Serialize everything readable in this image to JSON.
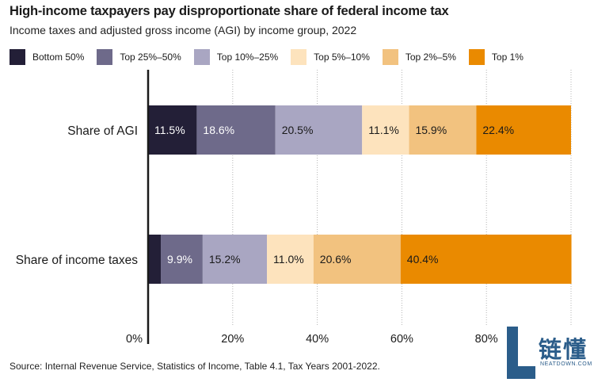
{
  "title": "High-income taxpayers pay disproportionate share of federal income tax",
  "subtitle": "Income taxes and adjusted gross income (AGI) by income group, 2022",
  "source": "Source: Internal Revenue Service, Statistics of Income, Table 4.1, Tax Years 2001-2022.",
  "watermark": {
    "chinese": "链懂",
    "latin": "NEATDOWN.COM"
  },
  "chart_data": {
    "type": "bar",
    "orientation": "horizontal",
    "stacked": true,
    "categories": [
      "Share of AGI",
      "Share of income taxes"
    ],
    "series": [
      {
        "name": "Bottom 50%",
        "color": "#231f37",
        "values": [
          11.5,
          3.0
        ],
        "labels": [
          "11.5%",
          ""
        ]
      },
      {
        "name": "Top 25%–50%",
        "color": "#6e6a8a",
        "values": [
          18.6,
          9.9
        ],
        "labels": [
          "18.6%",
          "9.9%"
        ]
      },
      {
        "name": "Top 10%–25%",
        "color": "#a9a6c2",
        "values": [
          20.5,
          15.2
        ],
        "labels": [
          "20.5%",
          "15.2%"
        ]
      },
      {
        "name": "Top 5%–10%",
        "color": "#fde3bd",
        "values": [
          11.1,
          11.0
        ],
        "labels": [
          "11.1%",
          "11.0%"
        ]
      },
      {
        "name": "Top 2%–5%",
        "color": "#f2c27f",
        "values": [
          15.9,
          20.6
        ],
        "labels": [
          "15.9%",
          "20.6%"
        ]
      },
      {
        "name": "Top 1%",
        "color": "#ea8a00",
        "values": [
          22.4,
          40.4
        ],
        "labels": [
          "22.4%",
          "40.4%"
        ]
      }
    ],
    "x_ticks": [
      "0%",
      "20%",
      "40%",
      "60%",
      "80%"
    ],
    "xlim": [
      0,
      100
    ],
    "legend_position": "top",
    "grid": "vertical dotted"
  }
}
